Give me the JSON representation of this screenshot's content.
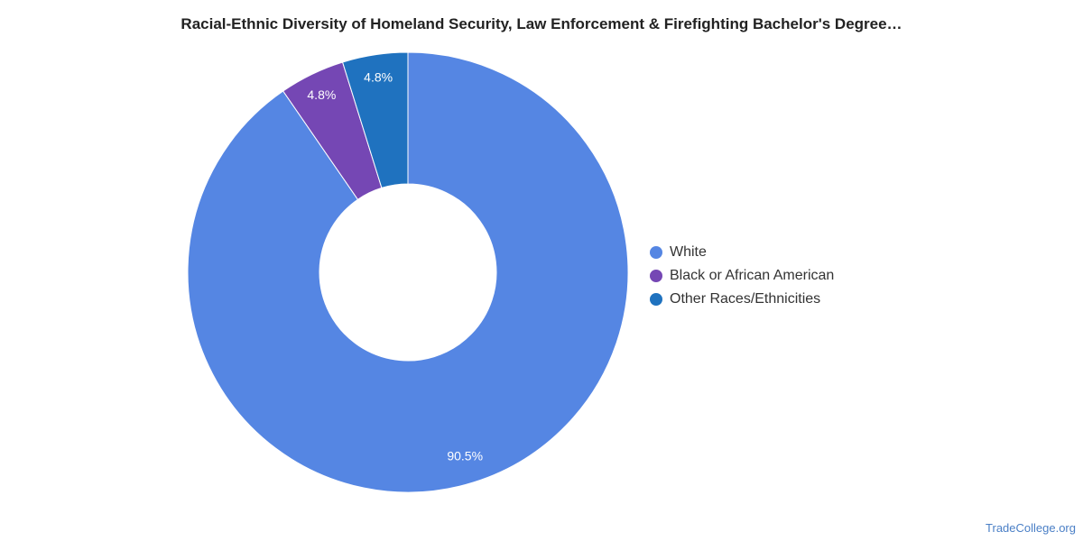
{
  "chart_data": {
    "type": "pie",
    "title": "Racial-Ethnic Diversity of Homeland Security, Law Enforcement & Firefighting Bachelor's Degree…",
    "slices": [
      {
        "name": "White",
        "value": 90.5,
        "label": "90.5%",
        "color": "#5586e3"
      },
      {
        "name": "Black or African American",
        "value": 4.8,
        "label": "4.8%",
        "color": "#7547b4"
      },
      {
        "name": "Other Races/Ethnicities",
        "value": 4.8,
        "label": "4.8%",
        "color": "#1f72bf"
      }
    ],
    "donut": true,
    "legend_position": "right"
  },
  "watermark": "TradeCollege.org"
}
